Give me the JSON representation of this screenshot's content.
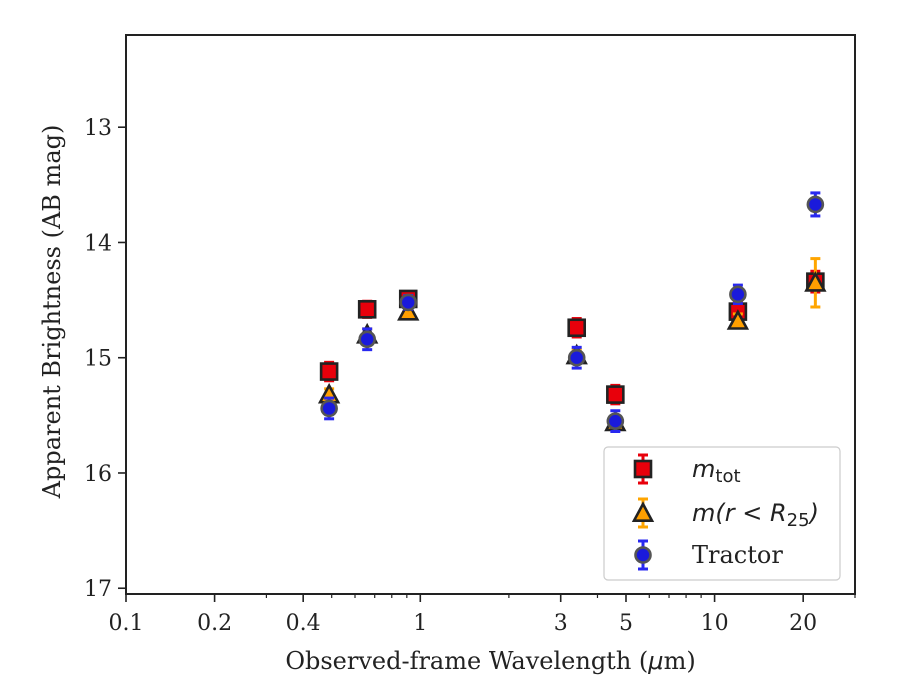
{
  "chart_data": {
    "type": "scatter",
    "xlabel_pre": "Observed-frame Wavelength (",
    "xlabel_mu": "μ",
    "xlabel_post": "m)",
    "ylabel": "Apparent Brightness (AB mag)",
    "xscale": "log",
    "xlim": [
      0.1,
      30
    ],
    "ylim": [
      17.05,
      12.2
    ],
    "y_inverted": true,
    "x_ticks": [
      {
        "value": 0.1,
        "label": "0.1"
      },
      {
        "value": 0.2,
        "label": "0.2"
      },
      {
        "value": 0.4,
        "label": "0.4"
      },
      {
        "value": 1,
        "label": "1"
      },
      {
        "value": 3,
        "label": "3"
      },
      {
        "value": 5,
        "label": "5"
      },
      {
        "value": 10,
        "label": "10"
      },
      {
        "value": 20,
        "label": "20"
      }
    ],
    "y_ticks": [
      {
        "value": 13,
        "label": "13"
      },
      {
        "value": 14,
        "label": "14"
      },
      {
        "value": 15,
        "label": "15"
      },
      {
        "value": 16,
        "label": "16"
      },
      {
        "value": 17,
        "label": "17"
      }
    ],
    "legend_position": "lower right",
    "series": [
      {
        "key": "mtot",
        "legend_main": "m",
        "legend_sub": "tot",
        "marker": "square",
        "fill": "#e8000b",
        "edge": "#222222",
        "errcolor": "#e8000b",
        "points": [
          {
            "x": 0.49,
            "y": 15.12,
            "err": 0.08
          },
          {
            "x": 0.66,
            "y": 14.58,
            "err": 0.07
          },
          {
            "x": 0.91,
            "y": 14.49,
            "err": 0.06
          },
          {
            "x": 3.4,
            "y": 14.74,
            "err": 0.08
          },
          {
            "x": 4.6,
            "y": 15.32,
            "err": 0.08
          },
          {
            "x": 12.0,
            "y": 14.6,
            "err": 0.09
          },
          {
            "x": 22.0,
            "y": 14.34,
            "err": 0.09
          }
        ]
      },
      {
        "key": "m_r25",
        "legend_main": "m(r < R",
        "legend_sub": "25",
        "legend_tail": ")",
        "marker": "triangle",
        "fill": "#ff9f00",
        "edge": "#222222",
        "errcolor": "#ffa500",
        "points": [
          {
            "x": 0.49,
            "y": 15.32,
            "err": 0.05
          },
          {
            "x": 0.66,
            "y": 14.8,
            "err": 0.05
          },
          {
            "x": 0.91,
            "y": 14.6,
            "err": 0.05
          },
          {
            "x": 3.4,
            "y": 14.98,
            "err": 0.05
          },
          {
            "x": 4.6,
            "y": 15.56,
            "err": 0.05
          },
          {
            "x": 12.0,
            "y": 14.68,
            "err": 0.06
          },
          {
            "x": 22.0,
            "y": 14.35,
            "err": 0.21
          }
        ]
      },
      {
        "key": "tractor",
        "legend_main": "Tractor",
        "marker": "circle",
        "fill": "#1a1adb",
        "edge": "#555555",
        "errcolor": "#2828f0",
        "points": [
          {
            "x": 0.49,
            "y": 15.44,
            "err": 0.09
          },
          {
            "x": 0.66,
            "y": 14.84,
            "err": 0.09
          },
          {
            "x": 0.91,
            "y": 14.52,
            "err": 0.06
          },
          {
            "x": 3.4,
            "y": 15.0,
            "err": 0.09
          },
          {
            "x": 4.6,
            "y": 15.55,
            "err": 0.09
          },
          {
            "x": 12.0,
            "y": 14.45,
            "err": 0.08
          },
          {
            "x": 22.0,
            "y": 13.67,
            "err": 0.1
          }
        ]
      }
    ]
  }
}
